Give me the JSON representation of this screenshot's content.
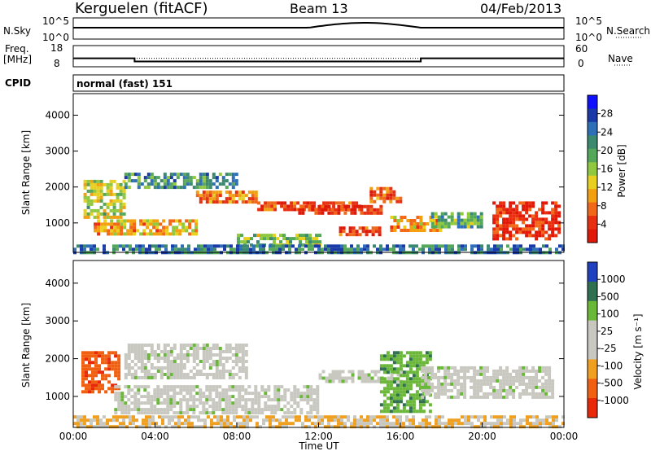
{
  "header": {
    "station": "Kerguelen (fitACF)",
    "beam": "Beam 13",
    "date": "04/Feb/2013"
  },
  "nsky_panel": {
    "label": "N.Sky",
    "right_label": "N.Search",
    "left_ticks": [
      "10^5",
      "10^0"
    ],
    "right_ticks": [
      "10^5",
      "10^0"
    ]
  },
  "freq_panel": {
    "label_line1": "Freq.",
    "label_line2": "[MHz]",
    "right_label": "Nave",
    "left_ticks": [
      "18",
      "8"
    ],
    "right_ticks": [
      "60",
      "0"
    ],
    "freq_mhz": [
      {
        "from": "00:00",
        "to": "03:00",
        "value": 12.0
      },
      {
        "from": "03:00",
        "to": "17:00",
        "value": 10.5
      },
      {
        "from": "17:00",
        "to": "24:00",
        "value": 12.0
      }
    ],
    "nave_level": 24
  },
  "cpid": {
    "label": "CPID",
    "value": "normal (fast) 151"
  },
  "chart_data": [
    {
      "type": "heatmap",
      "id": "power",
      "ylabel": "Slant Range [km]",
      "yticks": [
        "4000",
        "3000",
        "2000",
        "1000"
      ],
      "ytick_values": [
        4000,
        3000,
        2000,
        1000
      ],
      "ylim": [
        180,
        4600
      ],
      "xlim_hours": [
        0,
        24
      ],
      "colorbar": {
        "label": "Power [dB]",
        "ticks": [
          "28",
          "24",
          "20",
          "16",
          "12",
          "8",
          "4"
        ],
        "colors": [
          "#1010ff",
          "#1a3aa8",
          "#2f6fb8",
          "#3b8a70",
          "#55a85a",
          "#90c840",
          "#e8d020",
          "#f2a010",
          "#f06818",
          "#e83010",
          "#e01808"
        ]
      },
      "echo_bands": [
        {
          "t0": 0.5,
          "t1": 2.5,
          "r0": 1200,
          "r1": 2200,
          "level": 16
        },
        {
          "t0": 2.5,
          "t1": 8,
          "r0": 2000,
          "r1": 2400,
          "level": 10
        },
        {
          "t0": 1,
          "t1": 6,
          "r0": 700,
          "r1": 1100,
          "level": 20
        },
        {
          "t0": 6,
          "t1": 9,
          "r0": 1600,
          "r1": 1900,
          "level": 22
        },
        {
          "t0": 9,
          "t1": 14,
          "r0": 1400,
          "r1": 1600,
          "level": 26
        },
        {
          "t0": 11,
          "t1": 15,
          "r0": 1300,
          "r1": 1500,
          "level": 27
        },
        {
          "t0": 14.5,
          "t1": 16,
          "r0": 1600,
          "r1": 2000,
          "level": 24
        },
        {
          "t0": 15.5,
          "t1": 18,
          "r0": 800,
          "r1": 1200,
          "level": 20
        },
        {
          "t0": 8,
          "t1": 12,
          "r0": 400,
          "r1": 700,
          "level": 14
        },
        {
          "t0": 13,
          "t1": 15,
          "r0": 700,
          "r1": 900,
          "level": 26
        },
        {
          "t0": 17.5,
          "t1": 20,
          "r0": 900,
          "r1": 1300,
          "level": 12
        },
        {
          "t0": 20.5,
          "t1": 23.8,
          "r0": 600,
          "r1": 1600,
          "level": 27
        },
        {
          "t0": 0,
          "t1": 24,
          "r0": 200,
          "r1": 400,
          "level": 8
        }
      ]
    },
    {
      "type": "heatmap",
      "id": "velocity",
      "ylabel": "Slant Range [km]",
      "yticks": [
        "4000",
        "3000",
        "2000",
        "1000"
      ],
      "ytick_values": [
        4000,
        3000,
        2000,
        1000
      ],
      "ylim": [
        180,
        4600
      ],
      "xlim_hours": [
        0,
        24
      ],
      "xticks": [
        "00:00",
        "04:00",
        "08:00",
        "12:00",
        "16:00",
        "20:00",
        "00:00"
      ],
      "xlabel": "Time UT",
      "colorbar": {
        "label": "Velocity [m s⁻¹]",
        "ticks": [
          "1000",
          "500",
          "100",
          "25",
          "-25",
          "-100",
          "-500",
          "-1000"
        ],
        "colors": [
          "#2040c0",
          "#2e7050",
          "#6ab838",
          "#c8c8c0",
          "#c8c8c0",
          "#f0a020",
          "#f06010",
          "#e82808"
        ]
      },
      "echo_bands": [
        {
          "t0": 0.4,
          "t1": 2.2,
          "r0": 1100,
          "r1": 2200,
          "level": -500
        },
        {
          "t0": 2.5,
          "t1": 8.5,
          "r0": 1500,
          "r1": 2400,
          "level": 0
        },
        {
          "t0": 2,
          "t1": 12,
          "r0": 600,
          "r1": 1300,
          "level": 0
        },
        {
          "t0": 12,
          "t1": 16,
          "r0": 1400,
          "r1": 1700,
          "level": 0
        },
        {
          "t0": 15,
          "t1": 17.5,
          "r0": 600,
          "r1": 2200,
          "level": 200
        },
        {
          "t0": 17,
          "t1": 23.5,
          "r0": 1000,
          "r1": 1800,
          "level": 0
        },
        {
          "t0": 0,
          "t1": 24,
          "r0": 200,
          "r1": 500,
          "level": -100
        }
      ]
    }
  ]
}
